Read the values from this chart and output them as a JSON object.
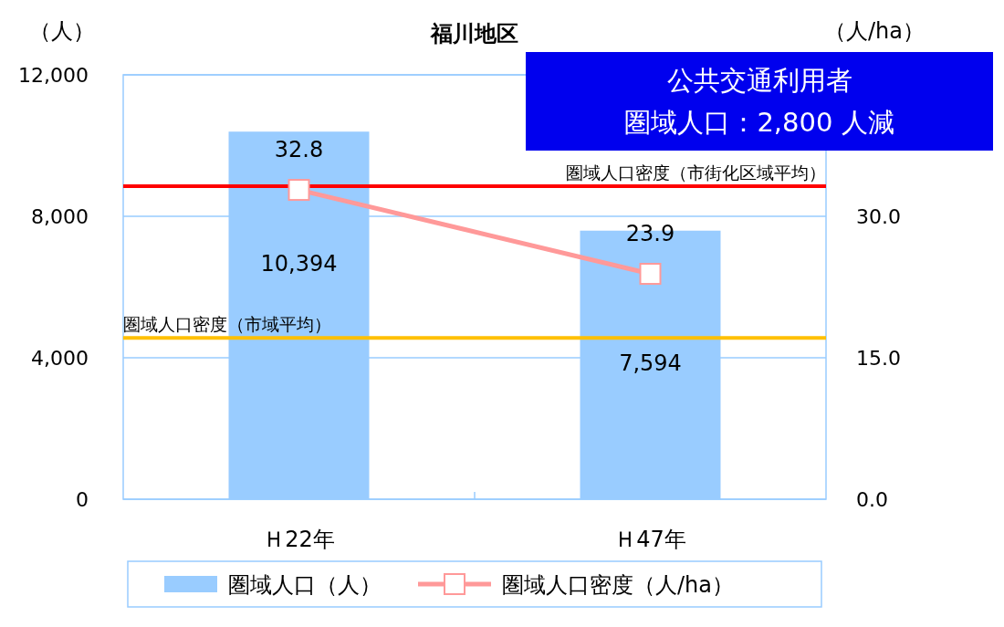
{
  "chart_data": {
    "type": "bar",
    "title": "福川地区",
    "ylabel": "（人）",
    "y2label": "（人/ha）",
    "categories": [
      "Ｈ22年",
      "Ｈ47年"
    ],
    "series": [
      {
        "name": "圏域人口（人）",
        "color": "#99ccff",
        "values": [
          10394,
          7594
        ],
        "value_labels": [
          "10,394",
          "7,594"
        ]
      },
      {
        "name": "圏域人口密度（人/ha）",
        "type": "line",
        "axis": "y2",
        "color": "#ff9999",
        "values": [
          32.8,
          23.9
        ],
        "value_labels": [
          "32.8",
          "23.9"
        ]
      }
    ],
    "ylim": [
      0,
      12000
    ],
    "yticks": [
      {
        "value": 0,
        "label": "0"
      },
      {
        "value": 4000,
        "label": "4,000"
      },
      {
        "value": 8000,
        "label": "8,000"
      },
      {
        "value": 12000,
        "label": "12,000"
      }
    ],
    "y2lim": [
      0,
      45
    ],
    "y2ticks": [
      {
        "value": 0,
        "label": "0.0"
      },
      {
        "value": 15,
        "label": "15.0"
      },
      {
        "value": 30,
        "label": "30.0"
      }
    ],
    "ref_lines": [
      {
        "axis": "y2",
        "value": 33.2,
        "label": "圏域人口密度（市街化区域平均）",
        "color": "#ff0000"
      },
      {
        "axis": "y2",
        "value": 17.1,
        "label": "圏域人口密度（市域平均）",
        "color": "#ffc000"
      }
    ],
    "annotations": [
      "公共交通利用者",
      "圏域人口：2,800 人減"
    ],
    "grid": "y",
    "legend": "bottom",
    "marker": "square"
  }
}
